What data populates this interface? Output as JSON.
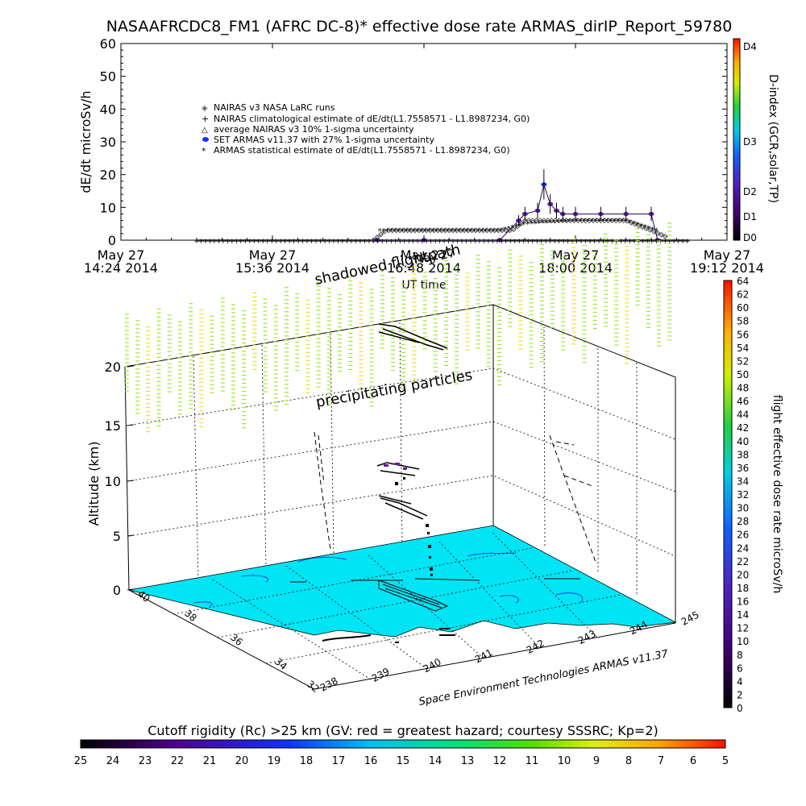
{
  "title": "NASAAFRCDC8_FM1 (AFRC DC-8)* effective dose rate ARMAS_dirIP_Report_59780",
  "chart_data": [
    {
      "type": "line",
      "title": "NASAAFRCDC8_FM1 (AFRC DC-8)* effective dose rate ARMAS_dirIP_Report_59780",
      "ylabel": "dE/dt microSv/h",
      "xlabel": "UT time",
      "ylim": [
        0,
        60
      ],
      "yticks": [
        "0",
        "10",
        "20",
        "30",
        "40",
        "50",
        "60"
      ],
      "xticks": [
        {
          "date": "May 27",
          "time": "14:24 2014"
        },
        {
          "date": "May 27",
          "time": "15:36 2014"
        },
        {
          "date": "May 27",
          "time": "16:48 2014"
        },
        {
          "date": "May 27",
          "time": "18:00 2014"
        },
        {
          "date": "May 27",
          "time": "19:12 2014"
        }
      ],
      "x_hours": [
        14.4,
        15.6,
        16.8,
        18.0,
        19.2
      ],
      "legend": [
        "NAIRAS v3 NASA LaRC runs",
        "NAIRAS climatological estimate of dE/dt(L1.7558571 - L1.8987234, G0)",
        "average NAIRAS v3 10% 1-sigma uncertainty",
        "SET ARMAS v11.37 with 27% 1-sigma uncertainty",
        "ARMAS statistical estimate of dE/dt(L1.7558571 - L1.8987234, G0)"
      ],
      "legend_placement": "upper-left",
      "series": [
        {
          "name": "SET ARMAS v11.37 with 27% 1-sigma uncertainty",
          "x": [
            16.43,
            16.8,
            17.4,
            17.55,
            17.6,
            17.7,
            17.75,
            17.8,
            17.85,
            17.9,
            18.0,
            18.2,
            18.4,
            18.6,
            18.65
          ],
          "y": [
            0,
            0,
            0,
            6,
            8,
            9,
            17,
            11,
            9,
            8,
            8,
            8,
            8,
            8,
            0
          ]
        },
        {
          "name": "NAIRAS v3 NASA LaRC runs",
          "x": [
            16.4,
            16.5,
            16.8,
            17.2,
            17.5,
            17.6,
            18.0,
            18.4,
            18.6,
            18.72
          ],
          "y": [
            0,
            3,
            3,
            3,
            3,
            6,
            6,
            6,
            3,
            1
          ]
        },
        {
          "name": "NAIRAS climatological estimate of dE/dt(L1.7558571 - L1.8987234, G0)",
          "x": [
            15.0,
            16.4,
            16.45,
            18.7,
            18.75,
            18.9
          ],
          "y": [
            0,
            0,
            0,
            0,
            0,
            0
          ]
        },
        {
          "name": "ARMAS statistical estimate of dE/dt(L1.7558571 - L1.8987234, G0)",
          "x": [
            16.45,
            16.8,
            17.4,
            17.6,
            18.0,
            18.4,
            18.65
          ],
          "y": [
            3,
            3,
            3,
            5,
            6,
            6,
            3
          ]
        }
      ],
      "colorbar": {
        "label": "D-index (GCR,solar,TP)",
        "ticks": [
          "D0",
          "D1",
          "D2",
          "D3",
          "D4"
        ]
      }
    },
    {
      "type": "scatter",
      "title": "",
      "zlabel": "Altitude (km)",
      "zticks": [
        "0",
        "5",
        "10",
        "15",
        "20"
      ],
      "lat_ticks": [
        "32",
        "34",
        "36",
        "38",
        "40"
      ],
      "lon_ticks": [
        "238",
        "239",
        "240",
        "241",
        "242",
        "243",
        "244",
        "245"
      ],
      "overlay_labels": [
        "shadowed flightpath",
        "precipitating particles",
        "May 27"
      ],
      "credit": "Space Environment Technologies ARMAS v11.37",
      "colorbar": {
        "label": "flight effective dose rate microSv/h",
        "ticks": [
          "0",
          "2",
          "4",
          "6",
          "8",
          "10",
          "12",
          "14",
          "16",
          "18",
          "20",
          "22",
          "24",
          "26",
          "28",
          "30",
          "32",
          "34",
          "36",
          "38",
          "40",
          "42",
          "44",
          "46",
          "48",
          "50",
          "52",
          "54",
          "56",
          "58",
          "60",
          "62",
          "64"
        ]
      },
      "rigidity_bar": {
        "label": "Cutoff rigidity (Rc) >25 km (GV: red = greatest hazard; courtesy SSSRC; Kp=2)",
        "ticks": [
          "25",
          "24",
          "23",
          "22",
          "21",
          "20",
          "19",
          "18",
          "17",
          "16",
          "15",
          "14",
          "13",
          "12",
          "11",
          "10",
          "9",
          "8",
          "7",
          "6",
          "5"
        ]
      },
      "map_color": "#00e5f5",
      "particle_color": "#9be830"
    }
  ]
}
